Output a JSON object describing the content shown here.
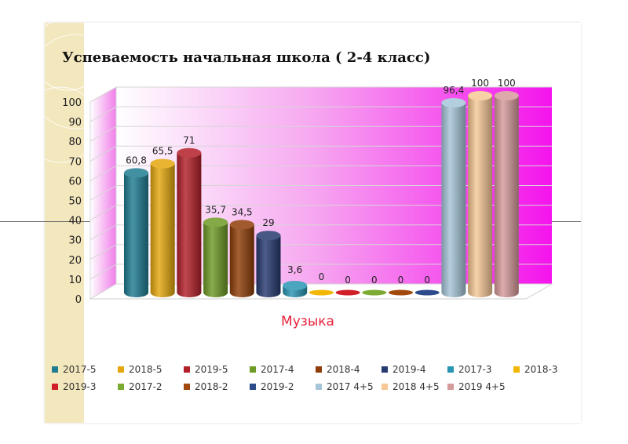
{
  "chart_data": {
    "type": "bar",
    "title": "Успеваемость начальная школа ( 2-4  класс)",
    "xlabel": "Музыка",
    "categories": [
      "Музыка"
    ],
    "ylim": [
      0,
      100
    ],
    "yticks": [
      0,
      10,
      20,
      30,
      40,
      50,
      60,
      70,
      80,
      90,
      100
    ],
    "grid": true,
    "legend_position": "bottom",
    "series": [
      {
        "name": "2017-5",
        "values": [
          60.8
        ],
        "label": "60,8",
        "color": "#1f7d92"
      },
      {
        "name": "2018-5",
        "values": [
          65.5
        ],
        "label": "65,5",
        "color": "#e4a70e"
      },
      {
        "name": "2019-5",
        "values": [
          71
        ],
        "label": "71",
        "color": "#b3202a"
      },
      {
        "name": "2017-4",
        "values": [
          35.7
        ],
        "label": "35,7",
        "color": "#6e9a26"
      },
      {
        "name": "2018-4",
        "values": [
          34.5
        ],
        "label": "34,5",
        "color": "#8f3d08"
      },
      {
        "name": "2019-4",
        "values": [
          29
        ],
        "label": "29",
        "color": "#263a70"
      },
      {
        "name": "2017-3",
        "values": [
          3.6
        ],
        "label": "3,6",
        "color": "#2a95b2"
      },
      {
        "name": "2018-3",
        "values": [
          0
        ],
        "label": "0",
        "color": "#f2b705"
      },
      {
        "name": "2019-3",
        "values": [
          0
        ],
        "label": "0",
        "color": "#d11f28"
      },
      {
        "name": "2017-2",
        "values": [
          0
        ],
        "label": "0",
        "color": "#7cab34"
      },
      {
        "name": "2018-2",
        "values": [
          0
        ],
        "label": "0",
        "color": "#a2490e"
      },
      {
        "name": "2019-2",
        "values": [
          0
        ],
        "label": "0",
        "color": "#2c4a8a"
      },
      {
        "name": "2017 4+5",
        "values": [
          96.4
        ],
        "label": "96,4",
        "color": "#a6c5d8"
      },
      {
        "name": "2018 4+5",
        "values": [
          100
        ],
        "label": "100",
        "color": "#f6c896"
      },
      {
        "name": "2019 4+5",
        "values": [
          100
        ],
        "label": "100",
        "color": "#d79a9b"
      }
    ]
  }
}
